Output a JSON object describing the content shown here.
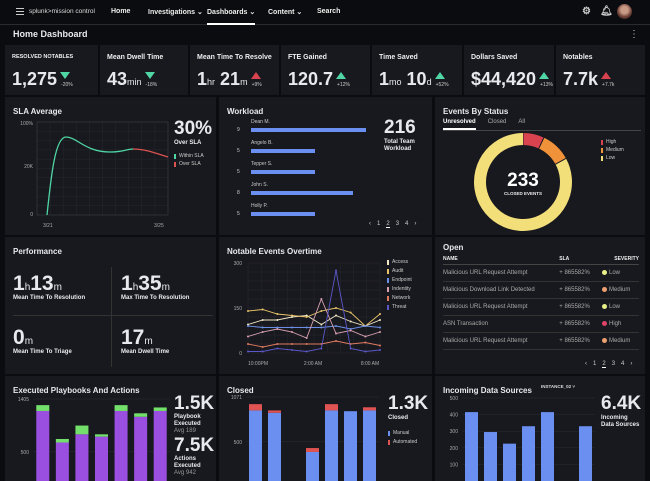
{
  "nav": {
    "logo": "splunk>mission control",
    "items": [
      "Home",
      "Investigations ⌄",
      "Dashboards ⌄",
      "Content ⌄",
      "Search"
    ],
    "active": 2
  },
  "page": {
    "title": "Home Dashboard"
  },
  "kpis": [
    {
      "label": "RESOLVED NOTABLES",
      "value": "1,275",
      "unit": "",
      "trend": "down",
      "change": "-20%"
    },
    {
      "label": "Mean Dwell Time",
      "value": "43",
      "unit": "min",
      "trend": "down",
      "change": "-18%"
    },
    {
      "label": "Mean Time To Resolve",
      "value": "1",
      "unit": "hr",
      "value2": "21",
      "unit2": "m",
      "trend": "up-bad",
      "change": "+9%"
    },
    {
      "label": "FTE Gained",
      "value": "120.7",
      "unit": "",
      "trend": "up",
      "change": "+12%"
    },
    {
      "label": "Time Saved",
      "value": "1",
      "unit": "mo",
      "value2": "10",
      "unit2": "d",
      "trend": "up",
      "change": "+52%"
    },
    {
      "label": "Dollars Saved",
      "value": "$44,420",
      "unit": "",
      "trend": "up",
      "change": "+13%"
    },
    {
      "label": "Notables",
      "value": "7.7k",
      "unit": "",
      "trend": "up-bad",
      "change": "+7.7k"
    }
  ],
  "sla": {
    "title": "SLA Average",
    "stat": "30%",
    "stat_label": "Over SLA",
    "y_ticks": [
      "100%",
      "20K",
      "0"
    ],
    "x_ticks": [
      "3/21",
      "3/25"
    ],
    "legend": [
      "Within SLA",
      "Over SLA"
    ],
    "colors": [
      "#4fd6a4",
      "#d9534f"
    ]
  },
  "workload": {
    "title": "Workload",
    "stat": "216",
    "stat_label": "Total Team Workload",
    "rows": [
      {
        "name": "Dean M.",
        "value": 9
      },
      {
        "name": "Angelo B.",
        "value": 5
      },
      {
        "name": "Tepper S.",
        "value": 5
      },
      {
        "name": "John S.",
        "value": 8
      },
      {
        "name": "Holly P.",
        "value": 5
      }
    ],
    "pages": [
      "1",
      "2",
      "3",
      "4"
    ],
    "active_page": 1
  },
  "events_status": {
    "title": "Events By Status",
    "tabs": [
      "Unresolved",
      "Closed",
      "All"
    ],
    "active_tab": 0,
    "total": "233",
    "center_label": "CLOSED EVENTS",
    "slices": [
      {
        "name": "High",
        "pct": 7,
        "color": "#d9434f"
      },
      {
        "name": "Medium",
        "pct": 10,
        "color": "#f0923a"
      },
      {
        "name": "Low",
        "pct": 83,
        "color": "#f3df7a"
      }
    ]
  },
  "performance": {
    "title": "Performance",
    "metrics": [
      {
        "parts": [
          "1",
          "h",
          "13",
          "m"
        ],
        "label": "Mean Time To Resolution"
      },
      {
        "parts": [
          "1",
          "h",
          "35",
          "m"
        ],
        "label": "Max Time To Resolution"
      },
      {
        "parts": [
          "0",
          "m"
        ],
        "label": "Mean Time To Triage"
      },
      {
        "parts": [
          "17",
          "m"
        ],
        "label": "Mean Dwell Time"
      }
    ]
  },
  "chart_data": [
    {
      "type": "line",
      "title": "Notable Events Overtime",
      "ylim": [
        0,
        300
      ],
      "y_ticks": [
        "0",
        "150",
        "300"
      ],
      "x_ticks": [
        "10:00PM",
        "2:00 AM",
        "8:00 AM"
      ],
      "series": [
        {
          "name": "Access",
          "color": "#f3e9c8",
          "values": [
            95,
            110,
            110,
            120,
            125,
            95,
            125,
            105,
            90,
            110
          ]
        },
        {
          "name": "Audit",
          "color": "#e9c46a",
          "values": [
            140,
            145,
            130,
            125,
            120,
            140,
            150,
            135,
            90,
            130
          ]
        },
        {
          "name": "Endpoint",
          "color": "#6b8fe8",
          "values": [
            90,
            85,
            85,
            85,
            85,
            85,
            90,
            80,
            90,
            85
          ]
        },
        {
          "name": "Indentity",
          "color": "#d9a0b0",
          "values": [
            55,
            70,
            80,
            70,
            50,
            180,
            65,
            75,
            55,
            70
          ]
        },
        {
          "name": "Network",
          "color": "#e07a5f",
          "values": [
            30,
            20,
            30,
            30,
            30,
            30,
            40,
            30,
            35,
            25
          ]
        },
        {
          "name": "Threat",
          "color": "#5b57c9",
          "values": [
            5,
            5,
            15,
            10,
            5,
            15,
            275,
            15,
            5,
            10
          ]
        }
      ]
    },
    {
      "type": "bar",
      "title": "Executed Playbooks And Actions",
      "y_ticks": [
        "1405",
        "500"
      ],
      "ylim": [
        0,
        1405
      ],
      "stacked": true,
      "series": [
        {
          "color": "#9b4fe0",
          "values": [
            1200,
            660,
            800,
            760,
            1200,
            1100,
            1200
          ]
        },
        {
          "color": "#72e06a",
          "values": [
            100,
            60,
            150,
            40,
            100,
            60,
            60
          ]
        }
      ]
    },
    {
      "type": "bar",
      "title": "Closed",
      "y_ticks": [
        "1071",
        "500"
      ],
      "ylim": [
        0,
        1071
      ],
      "stacked": true,
      "series": [
        {
          "name": "Manual",
          "color": "#6b8ff0",
          "values": [
            900,
            870,
            0,
            370,
            900,
            890,
            900
          ]
        },
        {
          "name": "Automated",
          "color": "#e05353",
          "values": [
            80,
            30,
            0,
            50,
            80,
            0,
            40
          ]
        }
      ]
    },
    {
      "type": "bar",
      "title": "Incoming Data Sources",
      "y_ticks": [
        "500",
        "400",
        "300",
        "200",
        "100"
      ],
      "ylim": [
        0,
        500
      ],
      "series": [
        {
          "color": "#6b8ff0",
          "values": [
            415,
            295,
            225,
            330,
            415,
            0,
            330
          ]
        }
      ]
    }
  ],
  "open": {
    "title": "Open",
    "headers": [
      "NAME",
      "SLA",
      "SEVERITY"
    ],
    "rows": [
      {
        "name": "Malicious URL Request Attempt",
        "sla": "+ 865582%",
        "severity": "Low",
        "color": "#e8f08a"
      },
      {
        "name": "Malicious Download Link Detected",
        "sla": "+ 865582%",
        "severity": "Medium",
        "color": "#f0a070"
      },
      {
        "name": "Malicious URL Request Attempt",
        "sla": "+ 865582%",
        "severity": "Low",
        "color": "#e8f08a"
      },
      {
        "name": "ASN Transaction",
        "sla": "+ 865582%",
        "severity": "High",
        "color": "#e0436a"
      },
      {
        "name": "Malicious URL Request Attempt",
        "sla": "+ 865582%",
        "severity": "Medium",
        "color": "#f0a070"
      }
    ],
    "pages": [
      "1",
      "2",
      "3",
      "4"
    ],
    "active_page": 1
  },
  "playbooks": {
    "stat1": "1.5K",
    "stat1_label": "Playbook Executed",
    "stat1_avg": "Avg 189",
    "stat2": "7.5K",
    "stat2_label": "Actions Executed",
    "stat2_avg": "Avg 942"
  },
  "closed": {
    "stat": "1.3K",
    "stat_label": "Closed"
  },
  "incoming": {
    "stat": "6.4K",
    "stat_label": "Incoming Data Sources",
    "instance": "INSTANCE_02 ˅"
  }
}
